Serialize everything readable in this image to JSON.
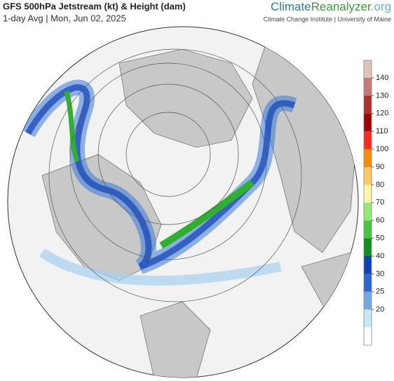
{
  "header": {
    "title": "GFS 500hPa Jetstream (kt) & Height (dam)",
    "subtitle": "1-day Avg | Mon, Jun 02, 2025"
  },
  "logo": {
    "parts": [
      {
        "text": "Climate",
        "color": "#2a7fa0"
      },
      {
        "text": "Reanalyzer",
        "color": "#3a9a3a"
      },
      {
        "text": ".org",
        "color": "#6ab0d8"
      }
    ],
    "tagline": "Climate Change Institute | University of Maine"
  },
  "colorbar": {
    "levels": [
      140,
      130,
      120,
      110,
      100,
      90,
      80,
      70,
      60,
      50,
      40,
      30,
      25,
      20
    ],
    "colors": [
      "#dcc4b8",
      "#c87878",
      "#b03030",
      "#a00000",
      "#ff2a1a",
      "#ff8c00",
      "#ffc860",
      "#fff4a8",
      "#90ec70",
      "#40c840",
      "#109020",
      "#1040b8",
      "#2a68d0",
      "#70a8e8",
      "#c8e6f6",
      "#ffffff"
    ]
  }
}
